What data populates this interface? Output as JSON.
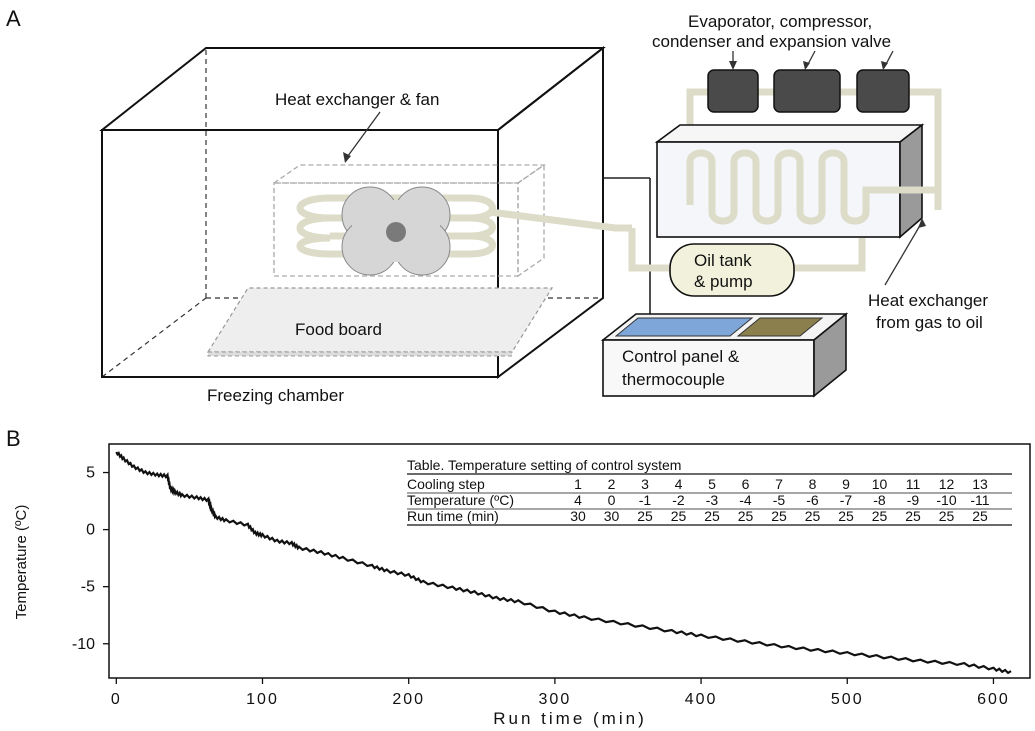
{
  "panel_a": {
    "letter": "A",
    "labels": {
      "evaporator": "Evaporator, compressor,",
      "evaporator2": "condenser and expansion valve",
      "heat_exchanger_fan": "Heat exchanger & fan",
      "oil_tank": "Oil tank",
      "oil_tank2": "& pump",
      "heat_exchanger_oil": "Heat exchanger",
      "heat_exchanger_oil2": "from gas to oil",
      "food_board": "Food board",
      "control_panel": "Control panel &",
      "control_panel2": "thermocouple",
      "freezing_chamber": "Freezing chamber"
    },
    "colors": {
      "pipe": "#dcdcc8",
      "compressor": "#4a4a4a",
      "panel_blue": "#7ea6d8",
      "panel_olive": "#8b7f4e",
      "oil_tank": "#f2f2dc"
    }
  },
  "panel_b": {
    "letter": "B",
    "table": {
      "title": "Table. Temperature setting of control system",
      "row_labels": [
        "Cooling step",
        "Temperature (ºC)",
        "Run time (min)"
      ],
      "steps": [
        "1",
        "2",
        "3",
        "4",
        "5",
        "6",
        "7",
        "8",
        "9",
        "10",
        "11",
        "12",
        "13"
      ],
      "temperatures": [
        "4",
        "0",
        "-1",
        "-2",
        "-3",
        "-4",
        "-5",
        "-6",
        "-7",
        "-8",
        "-9",
        "-10",
        "-11"
      ],
      "run_times": [
        "30",
        "30",
        "25",
        "25",
        "25",
        "25",
        "25",
        "25",
        "25",
        "25",
        "25",
        "25",
        "25"
      ]
    }
  },
  "chart_data": {
    "type": "line",
    "title": "",
    "xlabel": "Run time (min)",
    "ylabel": "Temperature (ºC)",
    "xlim": [
      -5,
      625
    ],
    "ylim": [
      -13,
      7.5
    ],
    "xticks": [
      0,
      100,
      200,
      300,
      400,
      500,
      600
    ],
    "yticks": [
      5,
      0,
      -5,
      -10
    ],
    "series": [
      {
        "x": [
          0,
          5,
          12,
          20,
          28,
          35,
          37,
          40,
          45,
          55,
          63,
          65,
          68,
          75,
          90,
          95,
          100,
          110,
          120,
          125,
          140,
          155,
          175,
          185,
          200,
          210,
          230,
          245,
          260,
          275,
          300,
          320,
          350,
          380,
          400,
          430,
          460,
          490,
          520,
          550,
          580,
          600,
          612
        ],
        "y": [
          6.8,
          6.2,
          5.5,
          5.0,
          4.8,
          4.7,
          3.6,
          3.3,
          3.0,
          2.8,
          2.6,
          1.8,
          1.1,
          0.8,
          0.4,
          -0.3,
          -0.5,
          -1.0,
          -1.2,
          -1.6,
          -2.0,
          -2.5,
          -3.2,
          -3.6,
          -4.0,
          -4.6,
          -5.1,
          -5.5,
          -6.0,
          -6.3,
          -7.2,
          -7.7,
          -8.3,
          -8.9,
          -9.3,
          -9.8,
          -10.3,
          -10.7,
          -11.1,
          -11.5,
          -11.8,
          -12.2,
          -12.5
        ]
      }
    ]
  }
}
